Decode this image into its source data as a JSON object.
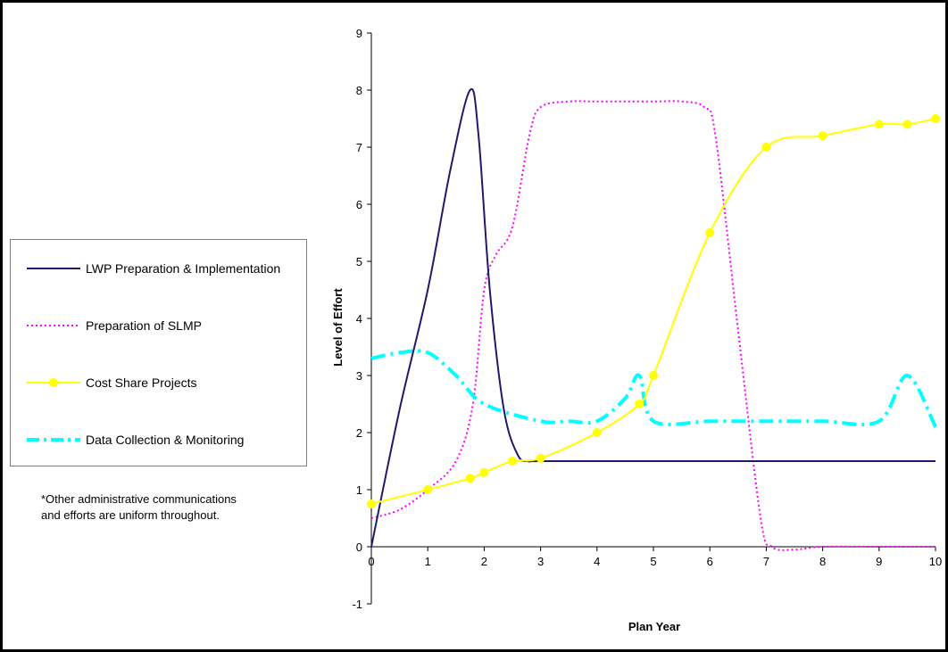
{
  "chart_data": {
    "type": "line",
    "title": "",
    "xlabel": "Plan Year",
    "ylabel": "Level of Effort",
    "xlim": [
      0,
      10
    ],
    "ylim": [
      -1,
      9
    ],
    "x_ticks": [
      0,
      1,
      2,
      3,
      4,
      5,
      6,
      7,
      8,
      9,
      10
    ],
    "y_ticks": [
      -1,
      0,
      1,
      2,
      3,
      4,
      5,
      6,
      7,
      8,
      9
    ],
    "grid": false,
    "legend_position": "left",
    "series": [
      {
        "name": "LWP Preparation & Implementation",
        "color": "#1f1a6b",
        "style": "solid",
        "markers": false,
        "points": [
          [
            0,
            0
          ],
          [
            0.5,
            2.4
          ],
          [
            1,
            4.5
          ],
          [
            1.4,
            6.6
          ],
          [
            1.75,
            8
          ],
          [
            1.9,
            7.2
          ],
          [
            2.1,
            4.5
          ],
          [
            2.35,
            2.4
          ],
          [
            2.6,
            1.6
          ],
          [
            2.8,
            1.5
          ],
          [
            3,
            1.5
          ],
          [
            5,
            1.5
          ],
          [
            7,
            1.5
          ],
          [
            10,
            1.5
          ]
        ]
      },
      {
        "name": "Preparation of SLMP",
        "color": "#ff00ff",
        "style": "dotted",
        "markers": false,
        "points": [
          [
            0,
            0.5
          ],
          [
            0.5,
            0.65
          ],
          [
            1,
            1
          ],
          [
            1.5,
            1.5
          ],
          [
            1.8,
            2.5
          ],
          [
            2,
            4.5
          ],
          [
            2.2,
            5.1
          ],
          [
            2.5,
            5.6
          ],
          [
            2.8,
            7.2
          ],
          [
            3,
            7.7
          ],
          [
            3.5,
            7.8
          ],
          [
            4,
            7.8
          ],
          [
            5,
            7.8
          ],
          [
            5.5,
            7.8
          ],
          [
            5.9,
            7.7
          ],
          [
            6.1,
            7.2
          ],
          [
            6.5,
            3.8
          ],
          [
            6.9,
            0.5
          ],
          [
            7.1,
            0
          ],
          [
            7.5,
            -0.05
          ],
          [
            8,
            0
          ],
          [
            9,
            0
          ],
          [
            10,
            0
          ]
        ]
      },
      {
        "name": "Cost Share Projects",
        "color": "#ffff00",
        "style": "solid",
        "markers": true,
        "points": [
          [
            0,
            0.75
          ],
          [
            1,
            1
          ],
          [
            1.75,
            1.2
          ],
          [
            2,
            1.3
          ],
          [
            2.5,
            1.5
          ],
          [
            3,
            1.55
          ],
          [
            4,
            2
          ],
          [
            4.75,
            2.5
          ],
          [
            5,
            3
          ],
          [
            6,
            5.5
          ],
          [
            7,
            7
          ],
          [
            8,
            7.2
          ],
          [
            9,
            7.4
          ],
          [
            9.5,
            7.4
          ],
          [
            10,
            7.5
          ]
        ]
      },
      {
        "name": "Data Collection & Monitoring",
        "color": "#00ffff",
        "style": "dashdot",
        "markers": false,
        "points": [
          [
            0,
            3.3
          ],
          [
            0.5,
            3.4
          ],
          [
            1,
            3.4
          ],
          [
            1.5,
            3
          ],
          [
            2,
            2.5
          ],
          [
            3,
            2.2
          ],
          [
            3.5,
            2.2
          ],
          [
            4,
            2.2
          ],
          [
            4.5,
            2.6
          ],
          [
            4.75,
            3
          ],
          [
            5,
            2.2
          ],
          [
            6,
            2.2
          ],
          [
            7,
            2.2
          ],
          [
            8,
            2.2
          ],
          [
            9,
            2.2
          ],
          [
            9.5,
            3
          ],
          [
            10,
            2.1
          ]
        ]
      }
    ]
  },
  "legend": {
    "items": [
      {
        "label": "LWP Preparation & Implementation",
        "color": "#1f1a6b",
        "style": "solid"
      },
      {
        "label": "Preparation of SLMP",
        "color": "#ff00ff",
        "style": "dotted"
      },
      {
        "label": "Cost Share Projects",
        "color": "#ffff00",
        "style": "solid-marker"
      },
      {
        "label": "Data Collection & Monitoring",
        "color": "#00ffff",
        "style": "dashdot"
      }
    ]
  },
  "note": {
    "line1": "*Other administrative communications",
    "line2": "and efforts are uniform throughout."
  }
}
